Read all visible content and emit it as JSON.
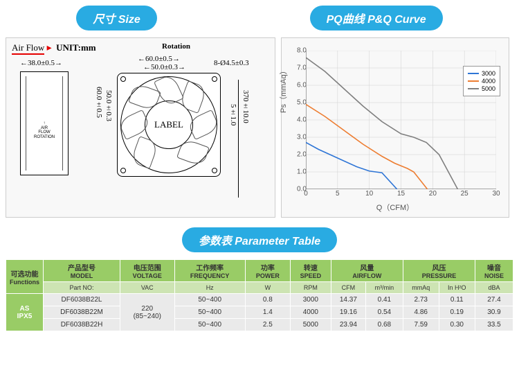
{
  "headers": {
    "size": "尺寸 Size",
    "pq": "PQ曲线 P&Q Curve",
    "param": "参数表 Parameter Table"
  },
  "drawing": {
    "airflow": "Air Flow",
    "unit": "UNIT:mm",
    "rotation": "Rotation",
    "depth": "38.0±0.5",
    "outer_w": "60.0±0.5",
    "inner_w": "50.0±0.3",
    "outer_h": "60.0±0.5",
    "inner_h": "50.0±0.3",
    "hole": "8-Ø4.5±0.3",
    "hub": "5±1.0",
    "lead": "370±10.0",
    "label": "LABEL",
    "air_rot": "AIR\nFLOW\nROTATION"
  },
  "chart": {
    "ylabel": "Ps（mmAq）",
    "xlabel": "Q（CFM）",
    "xlim": [
      0,
      30
    ],
    "ylim": [
      0,
      8
    ],
    "xticks": [
      0,
      5,
      10,
      15,
      20,
      25,
      30
    ],
    "yticks": [
      0,
      1,
      2,
      3,
      4,
      5,
      6,
      7,
      8
    ],
    "grid_color": "#d0d0d0",
    "series": [
      {
        "name": "3000",
        "color": "#2e75d6",
        "points": [
          [
            0,
            2.7
          ],
          [
            2,
            2.3
          ],
          [
            5,
            1.8
          ],
          [
            8,
            1.3
          ],
          [
            10,
            1.05
          ],
          [
            12,
            0.95
          ],
          [
            14.37,
            0
          ]
        ]
      },
      {
        "name": "4000",
        "color": "#ed7d31",
        "points": [
          [
            0,
            4.9
          ],
          [
            3,
            4.2
          ],
          [
            6,
            3.4
          ],
          [
            9,
            2.6
          ],
          [
            12,
            1.9
          ],
          [
            14,
            1.5
          ],
          [
            16,
            1.2
          ],
          [
            17,
            1.0
          ],
          [
            19.16,
            0
          ]
        ]
      },
      {
        "name": "5000",
        "color": "#7f7f7f",
        "points": [
          [
            0,
            7.6
          ],
          [
            3,
            6.8
          ],
          [
            6,
            5.8
          ],
          [
            9,
            4.8
          ],
          [
            12,
            3.9
          ],
          [
            15,
            3.2
          ],
          [
            17,
            3.0
          ],
          [
            19,
            2.7
          ],
          [
            21,
            2.0
          ],
          [
            23.94,
            0
          ]
        ]
      }
    ]
  },
  "table": {
    "funcs_label_cn": "可选功能",
    "funcs_label_en": "Functions",
    "funcs_value": "AS\nIPX5",
    "cols": [
      {
        "cn": "产品型号",
        "en": "MODEL",
        "sub": [
          "Part NO:"
        ]
      },
      {
        "cn": "电压范围",
        "en": "VOLTAGE",
        "sub": [
          "VAC"
        ]
      },
      {
        "cn": "工作频率",
        "en": "FREQUENCY",
        "sub": [
          "Hz"
        ]
      },
      {
        "cn": "功率",
        "en": "POWER",
        "sub": [
          "W"
        ]
      },
      {
        "cn": "转速",
        "en": "SPEED",
        "sub": [
          "RPM"
        ]
      },
      {
        "cn": "风量",
        "en": "AIRFLOW",
        "sub": [
          "CFM",
          "m³/min"
        ]
      },
      {
        "cn": "风压",
        "en": "PRESSURE",
        "sub": [
          "mmAq",
          "In H²O"
        ]
      },
      {
        "cn": "噪音",
        "en": "NOISE",
        "sub": [
          "dBA"
        ]
      }
    ],
    "voltage": "220\n(85~240)",
    "rows": [
      {
        "model": "DF6038B22L",
        "freq": "50~400",
        "power": "0.8",
        "speed": "3000",
        "cfm": "14.37",
        "m3": "0.41",
        "mmaq": "2.73",
        "inh": "0.11",
        "dba": "27.4"
      },
      {
        "model": "DF6038B22M",
        "freq": "50~400",
        "power": "1.4",
        "speed": "4000",
        "cfm": "19.16",
        "m3": "0.54",
        "mmaq": "4.86",
        "inh": "0.19",
        "dba": "30.9"
      },
      {
        "model": "DF6038B22H",
        "freq": "50~400",
        "power": "2.5",
        "speed": "5000",
        "cfm": "23.94",
        "m3": "0.68",
        "mmaq": "7.59",
        "inh": "0.30",
        "dba": "33.5"
      }
    ]
  }
}
